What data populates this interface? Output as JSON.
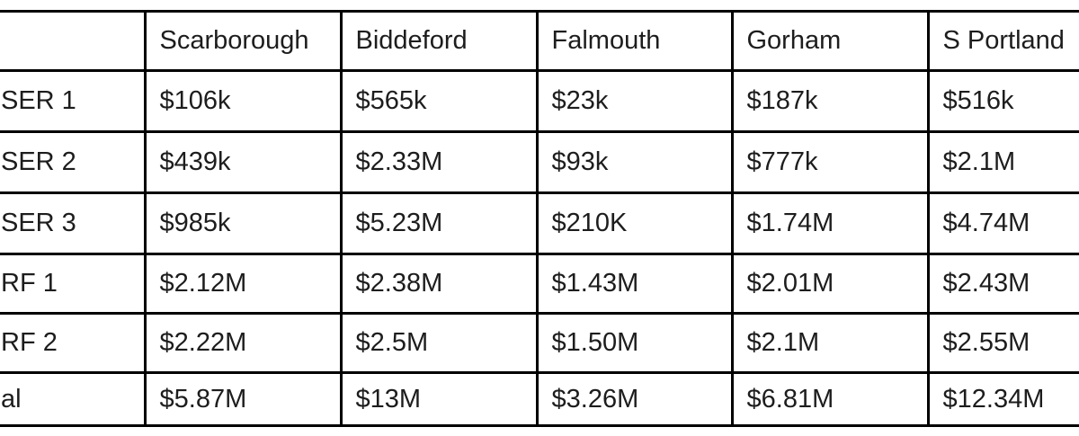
{
  "colors": {
    "background": "#ffffff",
    "border": "#000000",
    "text": "#1d1d1d"
  },
  "chart_data": {
    "type": "table",
    "title": "",
    "columns": [
      "",
      "Scarborough",
      "Biddeford",
      "Falmouth",
      "Gorham",
      "S Portland"
    ],
    "rows": [
      {
        "label": "SER 1",
        "values": [
          "$106k",
          "$565k",
          "$23k",
          "$187k",
          "$516k"
        ]
      },
      {
        "label": "SER 2",
        "values": [
          "$439k",
          "$2.33M",
          "$93k",
          "$777k",
          "$2.1M"
        ]
      },
      {
        "label": "SER 3",
        "values": [
          "$985k",
          "$5.23M",
          "$210K",
          "$1.74M",
          "$4.74M"
        ]
      },
      {
        "label": "RF 1",
        "values": [
          "$2.12M",
          "$2.38M",
          "$1.43M",
          "$2.01M",
          "$2.43M"
        ]
      },
      {
        "label": "RF 2",
        "values": [
          "$2.22M",
          "$2.5M",
          "$1.50M",
          "$2.1M",
          "$2.55M"
        ]
      },
      {
        "label": "al",
        "values": [
          "$5.87M",
          "$13M",
          "$3.26M",
          "$6.81M",
          "$12.34M"
        ]
      }
    ]
  }
}
